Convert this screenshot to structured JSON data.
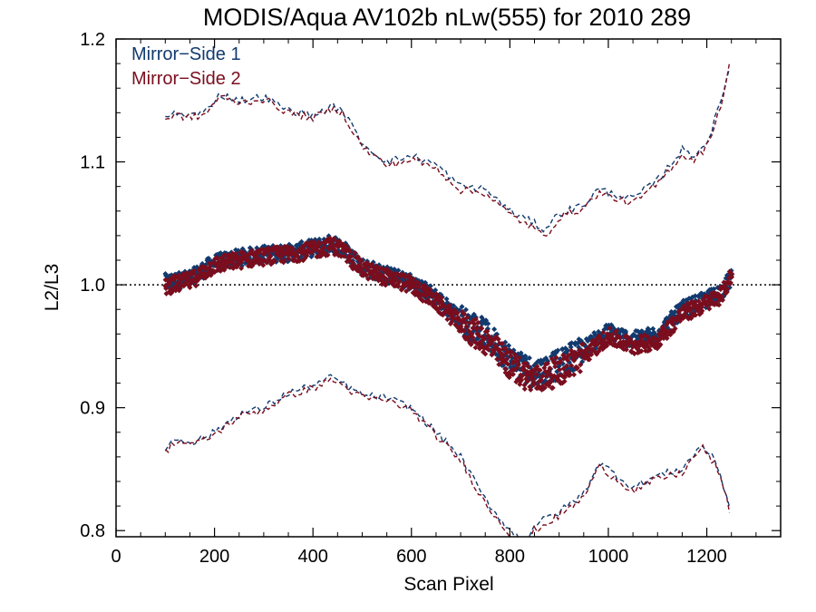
{
  "chart_data": {
    "type": "scatter",
    "title": "MODIS/Aqua AV102b nLw(555) for 2010 289",
    "xlabel": "Scan Pixel",
    "ylabel": "L2/L3",
    "xlim": [
      0,
      1350
    ],
    "ylim": [
      0.795,
      1.2
    ],
    "xticks": [
      0,
      200,
      400,
      600,
      800,
      1000,
      1200
    ],
    "xtick_labels": [
      "0",
      "200",
      "400",
      "600",
      "800",
      "1000",
      "1200"
    ],
    "yticks": [
      0.8,
      0.9,
      1.0,
      1.1,
      1.2
    ],
    "ytick_labels": [
      "0.8",
      "0.9",
      "1.0",
      "1.1",
      "1.2"
    ],
    "reference_line": 1.0,
    "legend_position": "top-left",
    "grid": false,
    "series": [
      {
        "name": "Mirror−Side 1",
        "color": "#123a6e",
        "mean": [
          [
            100,
            1.002
          ],
          [
            150,
            1.005
          ],
          [
            200,
            1.018
          ],
          [
            250,
            1.022
          ],
          [
            300,
            1.025
          ],
          [
            350,
            1.026
          ],
          [
            400,
            1.03
          ],
          [
            440,
            1.034
          ],
          [
            460,
            1.03
          ],
          [
            500,
            1.015
          ],
          [
            550,
            1.008
          ],
          [
            600,
            1.002
          ],
          [
            650,
            0.99
          ],
          [
            700,
            0.972
          ],
          [
            750,
            0.96
          ],
          [
            800,
            0.94
          ],
          [
            850,
            0.928
          ],
          [
            900,
            0.935
          ],
          [
            950,
            0.948
          ],
          [
            1000,
            0.962
          ],
          [
            1050,
            0.955
          ],
          [
            1100,
            0.96
          ],
          [
            1150,
            0.98
          ],
          [
            1200,
            0.988
          ],
          [
            1230,
            0.995
          ],
          [
            1250,
            1.005
          ]
        ],
        "upper": [
          [
            100,
            1.136
          ],
          [
            120,
            1.14
          ],
          [
            150,
            1.138
          ],
          [
            180,
            1.14
          ],
          [
            210,
            1.155
          ],
          [
            250,
            1.15
          ],
          [
            300,
            1.153
          ],
          [
            350,
            1.142
          ],
          [
            400,
            1.138
          ],
          [
            440,
            1.145
          ],
          [
            460,
            1.142
          ],
          [
            500,
            1.115
          ],
          [
            550,
            1.1
          ],
          [
            600,
            1.105
          ],
          [
            650,
            1.098
          ],
          [
            700,
            1.08
          ],
          [
            750,
            1.078
          ],
          [
            800,
            1.06
          ],
          [
            850,
            1.05
          ],
          [
            870,
            1.045
          ],
          [
            900,
            1.058
          ],
          [
            950,
            1.065
          ],
          [
            980,
            1.078
          ],
          [
            1000,
            1.075
          ],
          [
            1050,
            1.07
          ],
          [
            1100,
            1.085
          ],
          [
            1150,
            1.11
          ],
          [
            1170,
            1.105
          ],
          [
            1200,
            1.115
          ],
          [
            1230,
            1.15
          ],
          [
            1250,
            1.185
          ]
        ],
        "lower": [
          [
            100,
            0.866
          ],
          [
            120,
            0.875
          ],
          [
            160,
            0.872
          ],
          [
            200,
            0.88
          ],
          [
            250,
            0.895
          ],
          [
            300,
            0.9
          ],
          [
            350,
            0.912
          ],
          [
            400,
            0.918
          ],
          [
            440,
            0.925
          ],
          [
            460,
            0.92
          ],
          [
            500,
            0.91
          ],
          [
            550,
            0.908
          ],
          [
            600,
            0.9
          ],
          [
            650,
            0.88
          ],
          [
            700,
            0.86
          ],
          [
            750,
            0.825
          ],
          [
            800,
            0.8
          ],
          [
            830,
            0.79
          ],
          [
            850,
            0.805
          ],
          [
            900,
            0.815
          ],
          [
            950,
            0.83
          ],
          [
            980,
            0.855
          ],
          [
            1000,
            0.85
          ],
          [
            1050,
            0.835
          ],
          [
            1100,
            0.845
          ],
          [
            1150,
            0.85
          ],
          [
            1190,
            0.87
          ],
          [
            1220,
            0.855
          ],
          [
            1250,
            0.815
          ]
        ]
      },
      {
        "name": "Mirror−Side 2",
        "color": "#7a0e1e",
        "mean": [
          [
            100,
            0.999
          ],
          [
            150,
            1.003
          ],
          [
            200,
            1.016
          ],
          [
            250,
            1.02
          ],
          [
            300,
            1.023
          ],
          [
            350,
            1.025
          ],
          [
            400,
            1.028
          ],
          [
            440,
            1.032
          ],
          [
            460,
            1.028
          ],
          [
            500,
            1.013
          ],
          [
            550,
            1.006
          ],
          [
            600,
            1.0
          ],
          [
            650,
            0.986
          ],
          [
            700,
            0.968
          ],
          [
            750,
            0.955
          ],
          [
            800,
            0.935
          ],
          [
            850,
            0.922
          ],
          [
            900,
            0.93
          ],
          [
            950,
            0.942
          ],
          [
            1000,
            0.958
          ],
          [
            1050,
            0.95
          ],
          [
            1100,
            0.955
          ],
          [
            1150,
            0.976
          ],
          [
            1200,
            0.985
          ],
          [
            1230,
            0.992
          ],
          [
            1250,
            1.008
          ]
        ],
        "upper": [
          [
            100,
            1.134
          ],
          [
            120,
            1.138
          ],
          [
            150,
            1.136
          ],
          [
            180,
            1.138
          ],
          [
            210,
            1.153
          ],
          [
            250,
            1.148
          ],
          [
            300,
            1.151
          ],
          [
            350,
            1.14
          ],
          [
            400,
            1.136
          ],
          [
            440,
            1.143
          ],
          [
            460,
            1.14
          ],
          [
            500,
            1.112
          ],
          [
            550,
            1.097
          ],
          [
            600,
            1.102
          ],
          [
            650,
            1.095
          ],
          [
            700,
            1.077
          ],
          [
            750,
            1.075
          ],
          [
            800,
            1.057
          ],
          [
            850,
            1.046
          ],
          [
            870,
            1.038
          ],
          [
            900,
            1.055
          ],
          [
            950,
            1.062
          ],
          [
            980,
            1.075
          ],
          [
            1000,
            1.072
          ],
          [
            1050,
            1.066
          ],
          [
            1100,
            1.082
          ],
          [
            1150,
            1.106
          ],
          [
            1170,
            1.101
          ],
          [
            1200,
            1.112
          ],
          [
            1230,
            1.148
          ],
          [
            1250,
            1.186
          ]
        ],
        "lower": [
          [
            100,
            0.864
          ],
          [
            120,
            0.873
          ],
          [
            160,
            0.87
          ],
          [
            200,
            0.878
          ],
          [
            250,
            0.893
          ],
          [
            300,
            0.898
          ],
          [
            350,
            0.91
          ],
          [
            400,
            0.916
          ],
          [
            440,
            0.923
          ],
          [
            460,
            0.918
          ],
          [
            500,
            0.908
          ],
          [
            550,
            0.906
          ],
          [
            600,
            0.898
          ],
          [
            650,
            0.877
          ],
          [
            700,
            0.857
          ],
          [
            750,
            0.822
          ],
          [
            800,
            0.797
          ],
          [
            830,
            0.787
          ],
          [
            850,
            0.8
          ],
          [
            900,
            0.812
          ],
          [
            950,
            0.827
          ],
          [
            980,
            0.852
          ],
          [
            1000,
            0.847
          ],
          [
            1050,
            0.832
          ],
          [
            1100,
            0.842
          ],
          [
            1150,
            0.847
          ],
          [
            1190,
            0.868
          ],
          [
            1220,
            0.852
          ],
          [
            1250,
            0.812
          ]
        ]
      }
    ]
  }
}
